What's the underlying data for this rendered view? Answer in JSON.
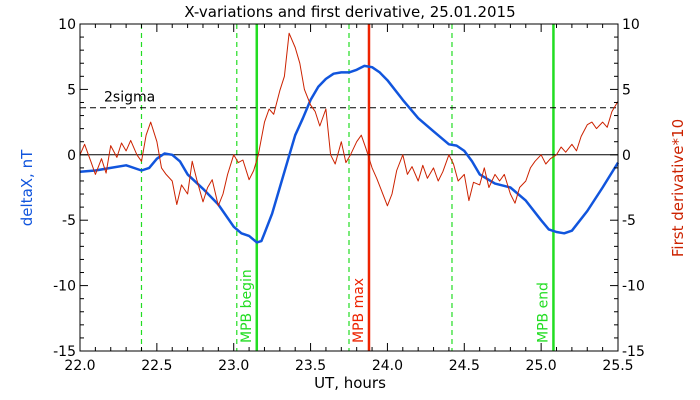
{
  "chart_data": {
    "type": "line",
    "title": "X-variations and first derivative, 25.01.2015",
    "xlabel": "UT, hours",
    "ylabel_left": "deltaX, nT",
    "ylabel_right": "First derivative*10",
    "xlim": [
      22.0,
      25.5
    ],
    "ylim_left": [
      -15,
      10
    ],
    "ylim_right": [
      -15,
      10
    ],
    "x_ticks": [
      "22.0",
      "22.5",
      "23.0",
      "23.5",
      "24.0",
      "24.5",
      "25.0",
      "25.5"
    ],
    "y_ticks_left": [
      "10",
      "5",
      "0",
      "-5",
      "-10",
      "-15"
    ],
    "y_ticks_right": [
      "10",
      "5",
      "0",
      "-5",
      "-10",
      "-15"
    ],
    "grid": false,
    "legend": "none",
    "series": [
      {
        "name": "deltaX, nT",
        "axis": "left",
        "color": "#1155dd",
        "points": [
          [
            22.0,
            -1.3
          ],
          [
            22.1,
            -1.2
          ],
          [
            22.2,
            -1.0
          ],
          [
            22.3,
            -0.8
          ],
          [
            22.4,
            -1.2
          ],
          [
            22.45,
            -1.0
          ],
          [
            22.5,
            -0.3
          ],
          [
            22.55,
            0.1
          ],
          [
            22.6,
            0.0
          ],
          [
            22.65,
            -0.5
          ],
          [
            22.7,
            -1.5
          ],
          [
            22.8,
            -2.6
          ],
          [
            22.9,
            -3.8
          ],
          [
            23.0,
            -5.5
          ],
          [
            23.05,
            -6.0
          ],
          [
            23.1,
            -6.2
          ],
          [
            23.15,
            -6.7
          ],
          [
            23.18,
            -6.6
          ],
          [
            23.2,
            -6.0
          ],
          [
            23.25,
            -4.5
          ],
          [
            23.3,
            -2.5
          ],
          [
            23.35,
            -0.5
          ],
          [
            23.4,
            1.5
          ],
          [
            23.45,
            2.8
          ],
          [
            23.5,
            4.2
          ],
          [
            23.55,
            5.2
          ],
          [
            23.6,
            5.8
          ],
          [
            23.65,
            6.2
          ],
          [
            23.7,
            6.3
          ],
          [
            23.75,
            6.3
          ],
          [
            23.8,
            6.5
          ],
          [
            23.85,
            6.8
          ],
          [
            23.9,
            6.7
          ],
          [
            23.95,
            6.3
          ],
          [
            24.0,
            5.7
          ],
          [
            24.1,
            4.2
          ],
          [
            24.2,
            2.8
          ],
          [
            24.3,
            1.8
          ],
          [
            24.4,
            0.8
          ],
          [
            24.45,
            0.7
          ],
          [
            24.5,
            0.3
          ],
          [
            24.55,
            -0.5
          ],
          [
            24.6,
            -1.5
          ],
          [
            24.7,
            -2.2
          ],
          [
            24.8,
            -2.5
          ],
          [
            24.9,
            -3.5
          ],
          [
            25.0,
            -5.0
          ],
          [
            25.05,
            -5.7
          ],
          [
            25.1,
            -5.9
          ],
          [
            25.15,
            -6.0
          ],
          [
            25.2,
            -5.8
          ],
          [
            25.3,
            -4.3
          ],
          [
            25.4,
            -2.5
          ],
          [
            25.5,
            -0.6
          ]
        ]
      },
      {
        "name": "First derivative*10",
        "axis": "right",
        "color": "#cc2200",
        "points": [
          [
            22.0,
            0.0
          ],
          [
            22.03,
            0.8
          ],
          [
            22.07,
            -0.5
          ],
          [
            22.1,
            -1.5
          ],
          [
            22.14,
            -0.3
          ],
          [
            22.17,
            -1.4
          ],
          [
            22.2,
            0.7
          ],
          [
            22.24,
            -0.2
          ],
          [
            22.27,
            0.9
          ],
          [
            22.3,
            0.3
          ],
          [
            22.33,
            1.1
          ],
          [
            22.37,
            0.0
          ],
          [
            22.4,
            -0.5
          ],
          [
            22.43,
            1.5
          ],
          [
            22.46,
            2.5
          ],
          [
            22.5,
            1.0
          ],
          [
            22.53,
            -1.0
          ],
          [
            22.56,
            -1.5
          ],
          [
            22.6,
            -2.0
          ],
          [
            22.63,
            -3.8
          ],
          [
            22.66,
            -2.3
          ],
          [
            22.7,
            -3.0
          ],
          [
            22.73,
            -0.5
          ],
          [
            22.76,
            -1.9
          ],
          [
            22.8,
            -3.6
          ],
          [
            22.83,
            -2.5
          ],
          [
            22.86,
            -1.9
          ],
          [
            22.9,
            -3.9
          ],
          [
            22.93,
            -3.0
          ],
          [
            22.96,
            -1.5
          ],
          [
            23.0,
            0.0
          ],
          [
            23.03,
            -0.6
          ],
          [
            23.06,
            -0.4
          ],
          [
            23.1,
            -1.9
          ],
          [
            23.13,
            -1.2
          ],
          [
            23.16,
            0.0
          ],
          [
            23.2,
            2.5
          ],
          [
            23.23,
            3.5
          ],
          [
            23.26,
            3.1
          ],
          [
            23.3,
            4.9
          ],
          [
            23.33,
            6.0
          ],
          [
            23.36,
            9.3
          ],
          [
            23.4,
            8.2
          ],
          [
            23.43,
            7.0
          ],
          [
            23.46,
            5.0
          ],
          [
            23.5,
            3.8
          ],
          [
            23.53,
            3.3
          ],
          [
            23.56,
            2.2
          ],
          [
            23.6,
            3.5
          ],
          [
            23.63,
            0.0
          ],
          [
            23.66,
            -0.7
          ],
          [
            23.7,
            1.0
          ],
          [
            23.73,
            -0.6
          ],
          [
            23.76,
            0.0
          ],
          [
            23.8,
            1.0
          ],
          [
            23.83,
            1.5
          ],
          [
            23.86,
            0.5
          ],
          [
            23.9,
            -1.0
          ],
          [
            23.93,
            -1.8
          ],
          [
            23.96,
            -2.7
          ],
          [
            24.0,
            -3.9
          ],
          [
            24.03,
            -3.0
          ],
          [
            24.06,
            -1.2
          ],
          [
            24.1,
            0.0
          ],
          [
            24.13,
            -1.5
          ],
          [
            24.16,
            -0.9
          ],
          [
            24.2,
            -2.0
          ],
          [
            24.23,
            -0.8
          ],
          [
            24.26,
            -1.8
          ],
          [
            24.3,
            -1.0
          ],
          [
            24.33,
            -2.0
          ],
          [
            24.36,
            -1.3
          ],
          [
            24.4,
            0.0
          ],
          [
            24.43,
            -0.7
          ],
          [
            24.46,
            -2.0
          ],
          [
            24.5,
            -1.5
          ],
          [
            24.53,
            -3.5
          ],
          [
            24.56,
            -2.1
          ],
          [
            24.6,
            -2.3
          ],
          [
            24.63,
            -1.0
          ],
          [
            24.66,
            -2.5
          ],
          [
            24.7,
            -1.5
          ],
          [
            24.73,
            -2.0
          ],
          [
            24.76,
            -1.5
          ],
          [
            24.8,
            -3.0
          ],
          [
            24.83,
            -3.7
          ],
          [
            24.86,
            -2.5
          ],
          [
            24.9,
            -2.0
          ],
          [
            24.93,
            -1.0
          ],
          [
            24.96,
            -0.5
          ],
          [
            25.0,
            0.0
          ],
          [
            25.03,
            -0.7
          ],
          [
            25.06,
            -0.3
          ],
          [
            25.1,
            0.0
          ],
          [
            25.13,
            0.6
          ],
          [
            25.16,
            0.2
          ],
          [
            25.2,
            0.8
          ],
          [
            25.23,
            0.3
          ],
          [
            25.26,
            1.4
          ],
          [
            25.3,
            2.3
          ],
          [
            25.33,
            2.5
          ],
          [
            25.36,
            2.0
          ],
          [
            25.4,
            2.5
          ],
          [
            25.43,
            2.1
          ],
          [
            25.46,
            3.3
          ],
          [
            25.5,
            4.1
          ]
        ]
      }
    ],
    "reference_lines": [
      {
        "type": "horizontal",
        "y": 0,
        "style": "solid",
        "color": "#000000"
      },
      {
        "type": "horizontal",
        "y": 3.6,
        "style": "dashed",
        "color": "#000000",
        "label": "2sigma"
      }
    ],
    "markers": [
      {
        "x": 22.4,
        "style": "dashed",
        "color": "#22dd22",
        "label": ""
      },
      {
        "x": 23.02,
        "style": "dashed",
        "color": "#22dd22",
        "label": ""
      },
      {
        "x": 23.15,
        "style": "solid",
        "color": "#22dd22",
        "label": "MPB begin"
      },
      {
        "x": 23.75,
        "style": "dashed",
        "color": "#22dd22",
        "label": ""
      },
      {
        "x": 23.88,
        "style": "solid",
        "color": "#ee2200",
        "label": "MPB max"
      },
      {
        "x": 24.42,
        "style": "dashed",
        "color": "#22dd22",
        "label": ""
      },
      {
        "x": 25.08,
        "style": "solid",
        "color": "#22dd22",
        "label": "MPB end"
      }
    ]
  }
}
